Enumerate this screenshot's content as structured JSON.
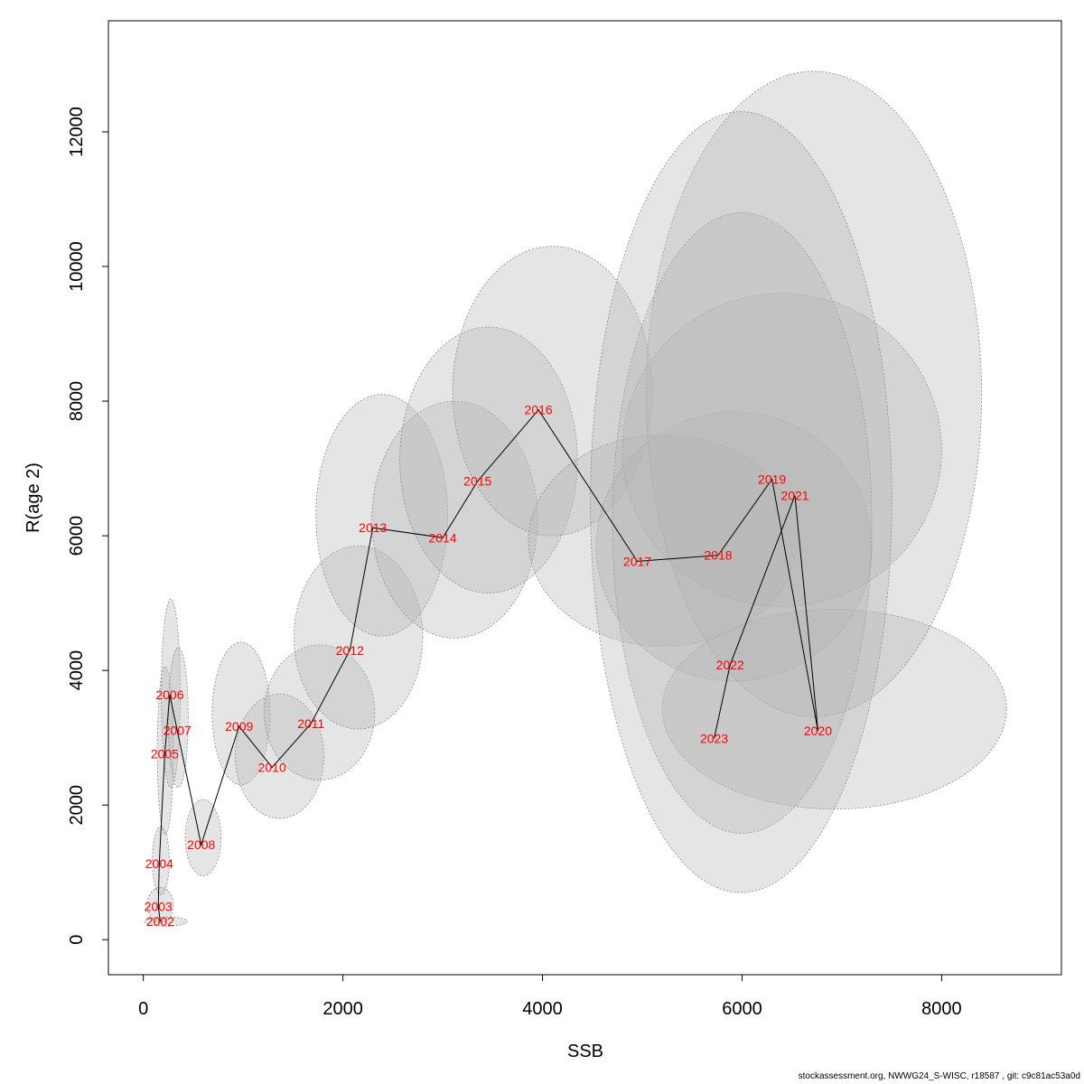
{
  "chart_data": {
    "type": "scatter",
    "xlabel": "SSB",
    "ylabel": "R(age 2)",
    "xlim": [
      -350,
      9200
    ],
    "ylim": [
      -520,
      13650
    ],
    "xticks": [
      0,
      2000,
      4000,
      6000,
      8000
    ],
    "yticks": [
      0,
      2000,
      4000,
      6000,
      8000,
      10000,
      12000
    ],
    "xtick_labels": [
      "0",
      "2000",
      "4000",
      "6000",
      "8000"
    ],
    "ytick_labels": [
      "0",
      "2000",
      "4000",
      "6000",
      "8000",
      "10000",
      "12000"
    ],
    "grid": false,
    "line_color": "#000000",
    "label_color": "#ff0000",
    "ellipse_fill": "#b4b4b4",
    "ellipse_stroke": "#8a8a8a",
    "points": [
      {
        "year": "2002",
        "ssb": 170,
        "rec": 270,
        "ssb_range": [
          10,
          440
        ],
        "rec_range": [
          200,
          340
        ]
      },
      {
        "year": "2003",
        "ssb": 150,
        "rec": 490,
        "ssb_range": [
          40,
          300
        ],
        "rec_range": [
          250,
          780
        ]
      },
      {
        "year": "2004",
        "ssb": 160,
        "rec": 1130,
        "ssb_range": [
          90,
          260
        ],
        "rec_range": [
          670,
          1680
        ]
      },
      {
        "year": "2005",
        "ssb": 215,
        "rec": 2760,
        "ssb_range": [
          140,
          300
        ],
        "rec_range": [
          1560,
          4060
        ]
      },
      {
        "year": "2006",
        "ssb": 265,
        "rec": 3640,
        "ssb_range": [
          180,
          370
        ],
        "rec_range": [
          2260,
          5060
        ]
      },
      {
        "year": "2007",
        "ssb": 340,
        "rec": 3110,
        "ssb_range": [
          250,
          450
        ],
        "rec_range": [
          2260,
          4340
        ]
      },
      {
        "year": "2008",
        "ssb": 580,
        "rec": 1410,
        "ssb_range": [
          420,
          780
        ],
        "rec_range": [
          950,
          2080
        ]
      },
      {
        "year": "2009",
        "ssb": 960,
        "rec": 3170,
        "ssb_range": [
          690,
          1270
        ],
        "rec_range": [
          2300,
          4420
        ]
      },
      {
        "year": "2010",
        "ssb": 1290,
        "rec": 2560,
        "ssb_range": [
          920,
          1810
        ],
        "rec_range": [
          1800,
          3650
        ]
      },
      {
        "year": "2011",
        "ssb": 1680,
        "rec": 3210,
        "ssb_range": [
          1210,
          2320
        ],
        "rec_range": [
          2370,
          4380
        ]
      },
      {
        "year": "2012",
        "ssb": 2070,
        "rec": 4300,
        "ssb_range": [
          1510,
          2800
        ],
        "rec_range": [
          3130,
          5850
        ]
      },
      {
        "year": "2013",
        "ssb": 2300,
        "rec": 6120,
        "ssb_range": [
          1730,
          3050
        ],
        "rec_range": [
          4510,
          8100
        ]
      },
      {
        "year": "2014",
        "ssb": 3000,
        "rec": 5970,
        "ssb_range": [
          2290,
          3950
        ],
        "rec_range": [
          4480,
          8000
        ]
      },
      {
        "year": "2015",
        "ssb": 3350,
        "rec": 6810,
        "ssb_range": [
          2570,
          4350
        ],
        "rec_range": [
          5150,
          9100
        ]
      },
      {
        "year": "2016",
        "ssb": 3960,
        "rec": 7870,
        "ssb_range": [
          3100,
          5100
        ],
        "rec_range": [
          6000,
          10300
        ]
      },
      {
        "year": "2017",
        "ssb": 4950,
        "rec": 5620,
        "ssb_range": [
          3860,
          6550
        ],
        "rec_range": [
          4360,
          7500
        ]
      },
      {
        "year": "2018",
        "ssb": 5760,
        "rec": 5710,
        "ssb_range": [
          4540,
          7300
        ],
        "rec_range": [
          3840,
          7840
        ]
      },
      {
        "year": "2019",
        "ssb": 6300,
        "rec": 6840,
        "ssb_range": [
          4800,
          8000
        ],
        "rec_range": [
          4950,
          9600
        ]
      },
      {
        "year": "2020",
        "ssb": 6760,
        "rec": 3100,
        "ssb_range": [
          5200,
          8650
        ],
        "rec_range": [
          1940,
          4910
        ]
      },
      {
        "year": "2021",
        "ssb": 6530,
        "rec": 6600,
        "ssb_range": [
          5040,
          8400
        ],
        "rec_range": [
          3310,
          12900
        ]
      },
      {
        "year": "2022",
        "ssb": 5880,
        "rec": 4080,
        "ssb_range": [
          4700,
          7300
        ],
        "rec_range": [
          1580,
          10800
        ]
      },
      {
        "year": "2023",
        "ssb": 5720,
        "rec": 2990,
        "ssb_range": [
          4480,
          7500
        ],
        "rec_range": [
          700,
          12300
        ]
      }
    ]
  },
  "footer": {
    "text": "stockassessment.org, NWWG24_S-WISC, r18587 , git: c9c81ac53a0d"
  }
}
